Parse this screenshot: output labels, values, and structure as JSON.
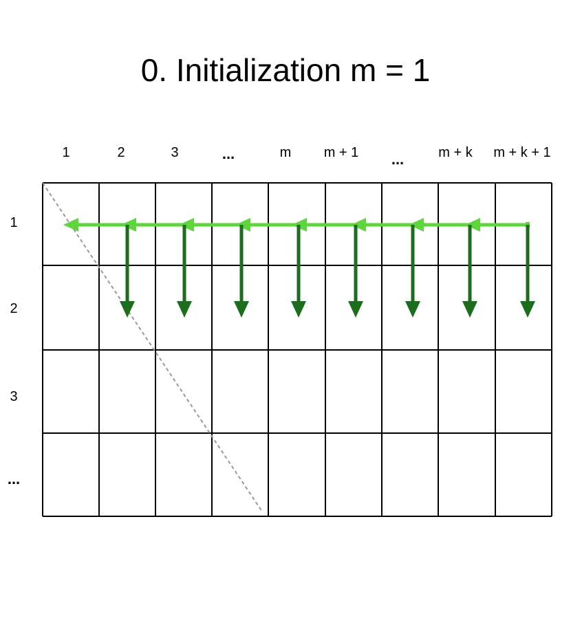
{
  "title": "0. Initialization m = 1",
  "column_labels": [
    "1",
    "2",
    "3",
    "...",
    "m",
    "m + 1",
    "...",
    "m + k",
    "m + k + 1"
  ],
  "row_labels": [
    "1",
    "2",
    "3",
    "..."
  ],
  "colors": {
    "grid": "#000000",
    "diagonal": "#999999",
    "horizontal_arrow": "#5cd63a",
    "vertical_arrow": "#1b6e1b"
  }
}
